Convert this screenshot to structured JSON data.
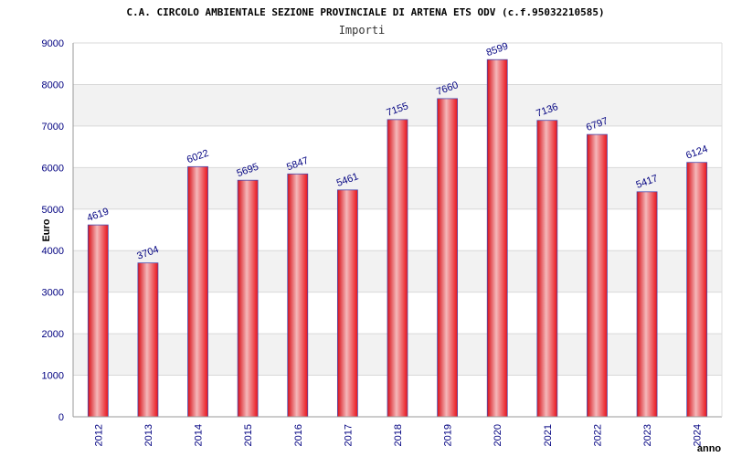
{
  "chart_data": {
    "type": "bar",
    "title": "C.A. CIRCOLO AMBIENTALE SEZIONE PROVINCIALE DI ARTENA ETS ODV (c.f.95032210585)",
    "subtitle": "Importi",
    "xlabel": "anno",
    "ylabel": "Euro",
    "categories": [
      "2012",
      "2013",
      "2014",
      "2015",
      "2016",
      "2017",
      "2018",
      "2019",
      "2020",
      "2021",
      "2022",
      "2023",
      "2024"
    ],
    "values": [
      4619,
      3704,
      6022,
      5695,
      5847,
      5461,
      7155,
      7660,
      8599,
      7136,
      6797,
      5417,
      6124
    ],
    "ylim": [
      0,
      9000
    ],
    "yticks": [
      0,
      1000,
      2000,
      3000,
      4000,
      5000,
      6000,
      7000,
      8000,
      9000
    ],
    "grid": true,
    "colors": {
      "bar": "#e8121a",
      "bar_highlight": "#f4b8ba",
      "bar_border": "#4b4bb0",
      "band": "#f2f2f2",
      "text": "#000080"
    }
  }
}
